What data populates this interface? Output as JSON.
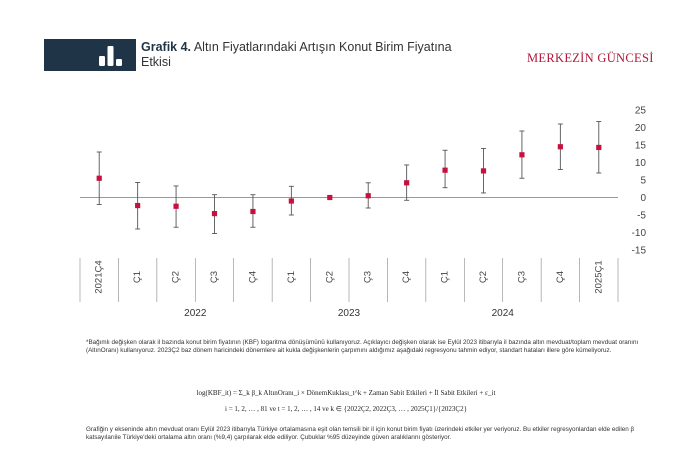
{
  "header": {
    "figure_label": "Grafik 4.",
    "title_line1": "Altın Fiyatlarındaki Artışın Konut Birim Fiyatına",
    "title_line2": "Etkisi",
    "brand": "MERKEZİN GÜNCESİ",
    "badge_color": "#1f3447",
    "brand_color": "#b0173a"
  },
  "chart_data": {
    "type": "scatter",
    "title": "",
    "xlabel": "",
    "ylabel": "",
    "ylim": [
      -15,
      25
    ],
    "y_ticks": [
      25,
      20,
      15,
      10,
      5,
      0,
      -5,
      -10,
      -15
    ],
    "y_axis_position": "right",
    "grid": false,
    "categories": [
      "2021Ç4",
      "Ç1",
      "Ç2",
      "Ç3",
      "Ç4",
      "Ç1",
      "Ç2",
      "Ç3",
      "Ç4",
      "Ç1",
      "Ç2",
      "Ç3",
      "Ç4",
      "2025Ç1"
    ],
    "year_groups": [
      {
        "label": "2022",
        "from": 1,
        "to": 4
      },
      {
        "label": "2023",
        "from": 5,
        "to": 8
      },
      {
        "label": "2024",
        "from": 9,
        "to": 12
      }
    ],
    "series": [
      {
        "values": [
          5.5,
          -2.3,
          -2.5,
          -4.6,
          -4.0,
          -1.0,
          0,
          0.5,
          4.2,
          7.8,
          7.6,
          12.2,
          14.5,
          14.3
        ],
        "lower": [
          -2,
          -9,
          -8.5,
          -10.3,
          -8.5,
          -5,
          0,
          -3,
          -0.8,
          2.8,
          1.3,
          5.5,
          8,
          7
        ],
        "upper": [
          13,
          4.3,
          3.3,
          0.8,
          0.8,
          3.2,
          0,
          4.2,
          9.3,
          13.5,
          14,
          19,
          21,
          21.7
        ]
      }
    ],
    "colors": {
      "point": "#c8103e",
      "error_bar": "#555555",
      "axis": "#777777"
    }
  },
  "notes": {
    "footnote1": "*Bağımlı değişken olarak il bazında konut birim fiyatının (KBF) logaritma dönüşümünü kullanıyoruz. Açıklayıcı değişken olarak ise Eylül 2023 itibarıyla il bazında altın mevduat/toplam mevduat oranını (AltınOranı) kullanıyoruz. 2023Ç2 baz dönem haricindeki dönemlere ait kukla değişkenlerin çarpımını aldığımız aşağıdaki regresyonu tahmin ediyor, standart hataları illere göre kümeliyoruz.",
    "formula_line1": "log(KBF_it) = Σ_k β_k AltınOranı_i × DönemKuklası_t^k + Zaman Sabit Etkileri + İl Sabit Etkileri + ε_it",
    "formula_line2": "i = 1, 2, … , 81 ve t = 1, 2, … , 14 ve k ∈ {2022Ç2, 2022Ç3, … , 2025Ç1}/{2023Ç2}",
    "footnote2": "Grafiğin y ekseninde altın mevduat oranı Eylül 2023 itibarıyla Türkiye ortalamasına eşit olan temsili bir il için konut birim fiyatı üzerindeki etkiler yer veriyoruz. Bu etkiler regresyonlardan elde edilen β katsayılarıile Türkiye'deki ortalama altın oranı (%9,4) çarpılarak elde ediliyor. Çubuklar %95 düzeyinde güven aralıklarını gösteriyor."
  }
}
